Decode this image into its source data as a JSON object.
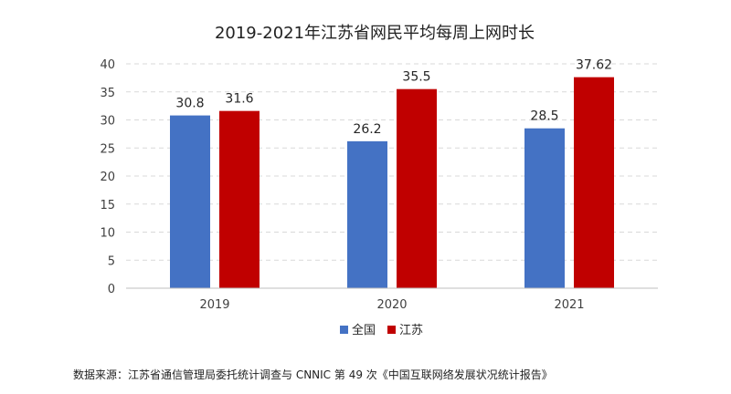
{
  "chart_data": {
    "type": "bar",
    "title": "2019-2021年江苏省网民平均每周上网时长",
    "categories": [
      "2019",
      "2020",
      "2021"
    ],
    "series": [
      {
        "name": "全国",
        "values": [
          30.8,
          26.2,
          28.5
        ],
        "labels": [
          "30.8",
          "26.2",
          "28.5"
        ],
        "color": "#4472C4"
      },
      {
        "name": "江苏",
        "values": [
          31.6,
          35.5,
          37.62
        ],
        "labels": [
          "31.6",
          "35.5",
          "37.62"
        ],
        "color": "#C00000"
      }
    ],
    "y_ticks": [
      "0",
      "5",
      "10",
      "15",
      "20",
      "25",
      "30",
      "35",
      "40"
    ],
    "ylim": [
      0,
      40
    ],
    "grid": true,
    "grid_color": "#D9D9D9",
    "legend_position": "bottom"
  },
  "source_note": "数据来源：江苏省通信管理局委托统计调查与 CNNIC 第 49 次《中国互联网络发展状况统计报告》"
}
